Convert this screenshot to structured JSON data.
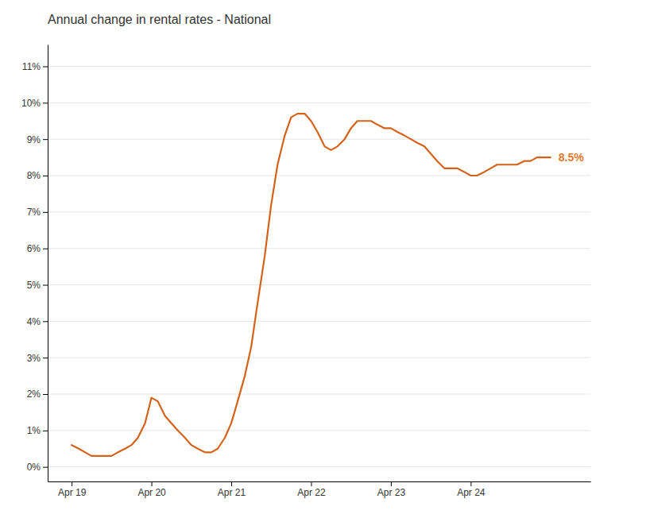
{
  "chart_data": {
    "type": "line",
    "title": "Annual change in rental rates - National",
    "x": [
      0.0,
      0.09,
      0.17,
      0.25,
      0.33,
      0.42,
      0.5,
      0.58,
      0.67,
      0.75,
      0.83,
      0.92,
      1.0,
      1.08,
      1.17,
      1.25,
      1.33,
      1.42,
      1.5,
      1.58,
      1.67,
      1.75,
      1.83,
      1.92,
      2.0,
      2.08,
      2.17,
      2.25,
      2.33,
      2.42,
      2.5,
      2.58,
      2.67,
      2.75,
      2.83,
      2.92,
      3.0,
      3.08,
      3.17,
      3.25,
      3.33,
      3.42,
      3.5,
      3.58,
      3.67,
      3.75,
      3.83,
      3.92,
      4.0,
      4.08,
      4.17,
      4.25,
      4.33,
      4.42,
      4.5,
      4.58,
      4.67,
      4.75,
      4.83,
      4.92,
      5.0,
      5.08,
      5.17,
      5.25,
      5.33,
      5.42,
      5.5,
      5.58,
      5.67,
      5.75,
      5.83,
      5.92,
      6.0
    ],
    "values": [
      0.006,
      0.005,
      0.004,
      0.003,
      0.003,
      0.003,
      0.003,
      0.004,
      0.005,
      0.006,
      0.008,
      0.012,
      0.019,
      0.018,
      0.014,
      0.012,
      0.01,
      0.008,
      0.006,
      0.005,
      0.004,
      0.004,
      0.005,
      0.008,
      0.012,
      0.018,
      0.025,
      0.033,
      0.045,
      0.058,
      0.072,
      0.083,
      0.091,
      0.096,
      0.097,
      0.097,
      0.095,
      0.092,
      0.088,
      0.087,
      0.088,
      0.09,
      0.093,
      0.095,
      0.095,
      0.095,
      0.094,
      0.093,
      0.093,
      0.092,
      0.091,
      0.09,
      0.089,
      0.088,
      0.086,
      0.084,
      0.082,
      0.082,
      0.082,
      0.081,
      0.08,
      0.08,
      0.081,
      0.082,
      0.083,
      0.083,
      0.083,
      0.083,
      0.084,
      0.084,
      0.085,
      0.085,
      0.085
    ],
    "color": "#d4631a",
    "xlim": [
      -0.3,
      6.5
    ],
    "xticks": [
      {
        "value": 0.0,
        "label": "Apr 19"
      },
      {
        "value": 1.0,
        "label": "Apr 20"
      },
      {
        "value": 2.0,
        "label": "Apr 21"
      },
      {
        "value": 3.0,
        "label": "Apr 22"
      },
      {
        "value": 4.0,
        "label": "Apr 23"
      },
      {
        "value": 5.0,
        "label": "Apr 24"
      }
    ],
    "ylim": [
      -0.004,
      0.116
    ],
    "yticks": [
      {
        "value": 0.0,
        "label": "0%"
      },
      {
        "value": 0.01,
        "label": "1%"
      },
      {
        "value": 0.02,
        "label": "2%"
      },
      {
        "value": 0.03,
        "label": "3%"
      },
      {
        "value": 0.04,
        "label": "4%"
      },
      {
        "value": 0.05,
        "label": "5%"
      },
      {
        "value": 0.06,
        "label": "6%"
      },
      {
        "value": 0.07,
        "label": "7%"
      },
      {
        "value": 0.08,
        "label": "8%"
      },
      {
        "value": 0.09,
        "label": "9%"
      },
      {
        "value": 0.1,
        "label": "10%"
      },
      {
        "value": 0.11,
        "label": "11%"
      }
    ],
    "grid": true,
    "annotations": [
      {
        "text": "8.5%",
        "color": "#e07830"
      }
    ]
  }
}
